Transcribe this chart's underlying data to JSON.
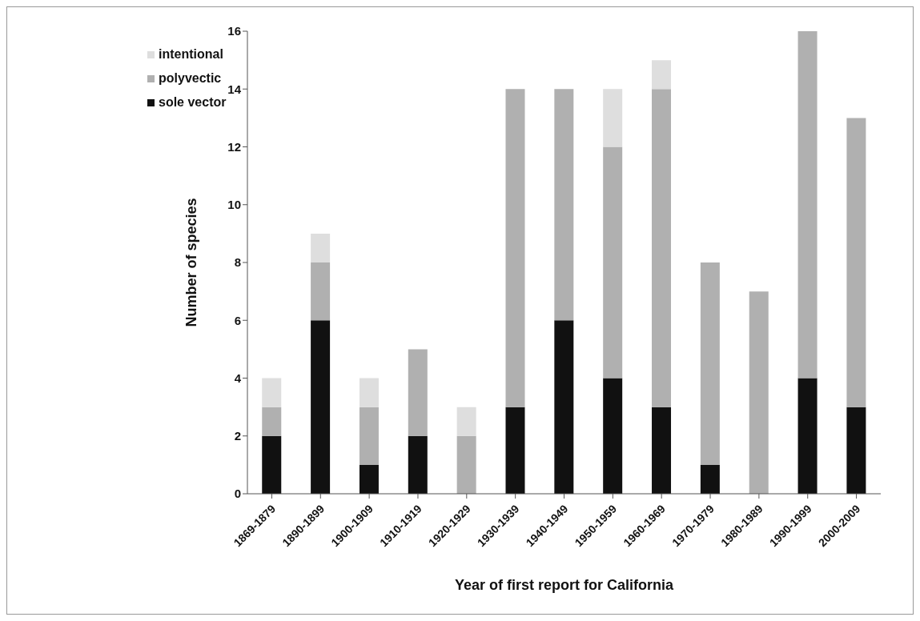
{
  "chart_data": {
    "type": "bar",
    "stacked": true,
    "xlabel": "Year of first report for California",
    "ylabel": "Number of species",
    "categories": [
      "1869-1879",
      "1890-1899",
      "1900-1909",
      "1910-1919",
      "1920-1929",
      "1930-1939",
      "1940-1949",
      "1950-1959",
      "1960-1969",
      "1970-1979",
      "1980-1989",
      "1990-1999",
      "2000-2009"
    ],
    "series": [
      {
        "name": "sole vector",
        "color": "#111111",
        "values": [
          2,
          6,
          1,
          2,
          0,
          3,
          6,
          4,
          3,
          1,
          0,
          4,
          3
        ]
      },
      {
        "name": "polyvectic",
        "color": "#b0b0b0",
        "values": [
          1,
          2,
          2,
          3,
          2,
          11,
          8,
          8,
          11,
          7,
          7,
          12,
          10
        ]
      },
      {
        "name": "intentional",
        "color": "#dedede",
        "values": [
          1,
          1,
          1,
          0,
          1,
          0,
          0,
          2,
          1,
          0,
          0,
          0,
          0
        ]
      }
    ],
    "ylim": [
      0,
      16
    ],
    "yticks": [
      0,
      2,
      4,
      6,
      8,
      10,
      12,
      14,
      16
    ],
    "grid": false,
    "legend": "top left"
  }
}
